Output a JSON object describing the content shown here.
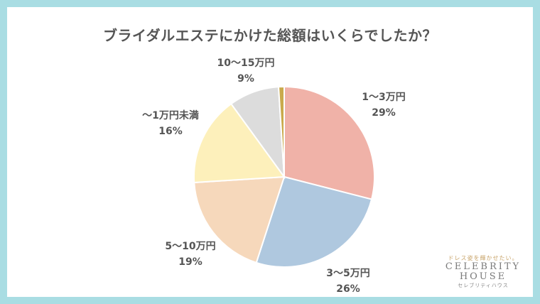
{
  "chart_data": {
    "type": "pie",
    "title": "ブライダルエステにかけた総額はいくらでしたか？",
    "slices": [
      {
        "label": "1〜3万円",
        "value": 29,
        "display": "29%",
        "color": "#f0b2a8"
      },
      {
        "label": "3〜5万円",
        "value": 26,
        "display": "26%",
        "color": "#afc8df"
      },
      {
        "label": "5〜10万円",
        "value": 19,
        "display": "19%",
        "color": "#f6d8bb"
      },
      {
        "label": "〜1万円未満",
        "value": 16,
        "display": "16%",
        "color": "#fdf0bb"
      },
      {
        "label": "10〜15万円",
        "value": 9,
        "display": "9%",
        "color": "#dcdcdc"
      },
      {
        "label": "",
        "value": 1,
        "display": "",
        "color": "#c9aa4c"
      }
    ],
    "start_angle_deg": 0,
    "direction": "clockwise"
  },
  "brand": {
    "tagline": "ドレス姿を輝かせたい。",
    "name_line1": "CELEBRITY",
    "name_line2": "HOUSE",
    "kana": "セレブリティハウス"
  }
}
